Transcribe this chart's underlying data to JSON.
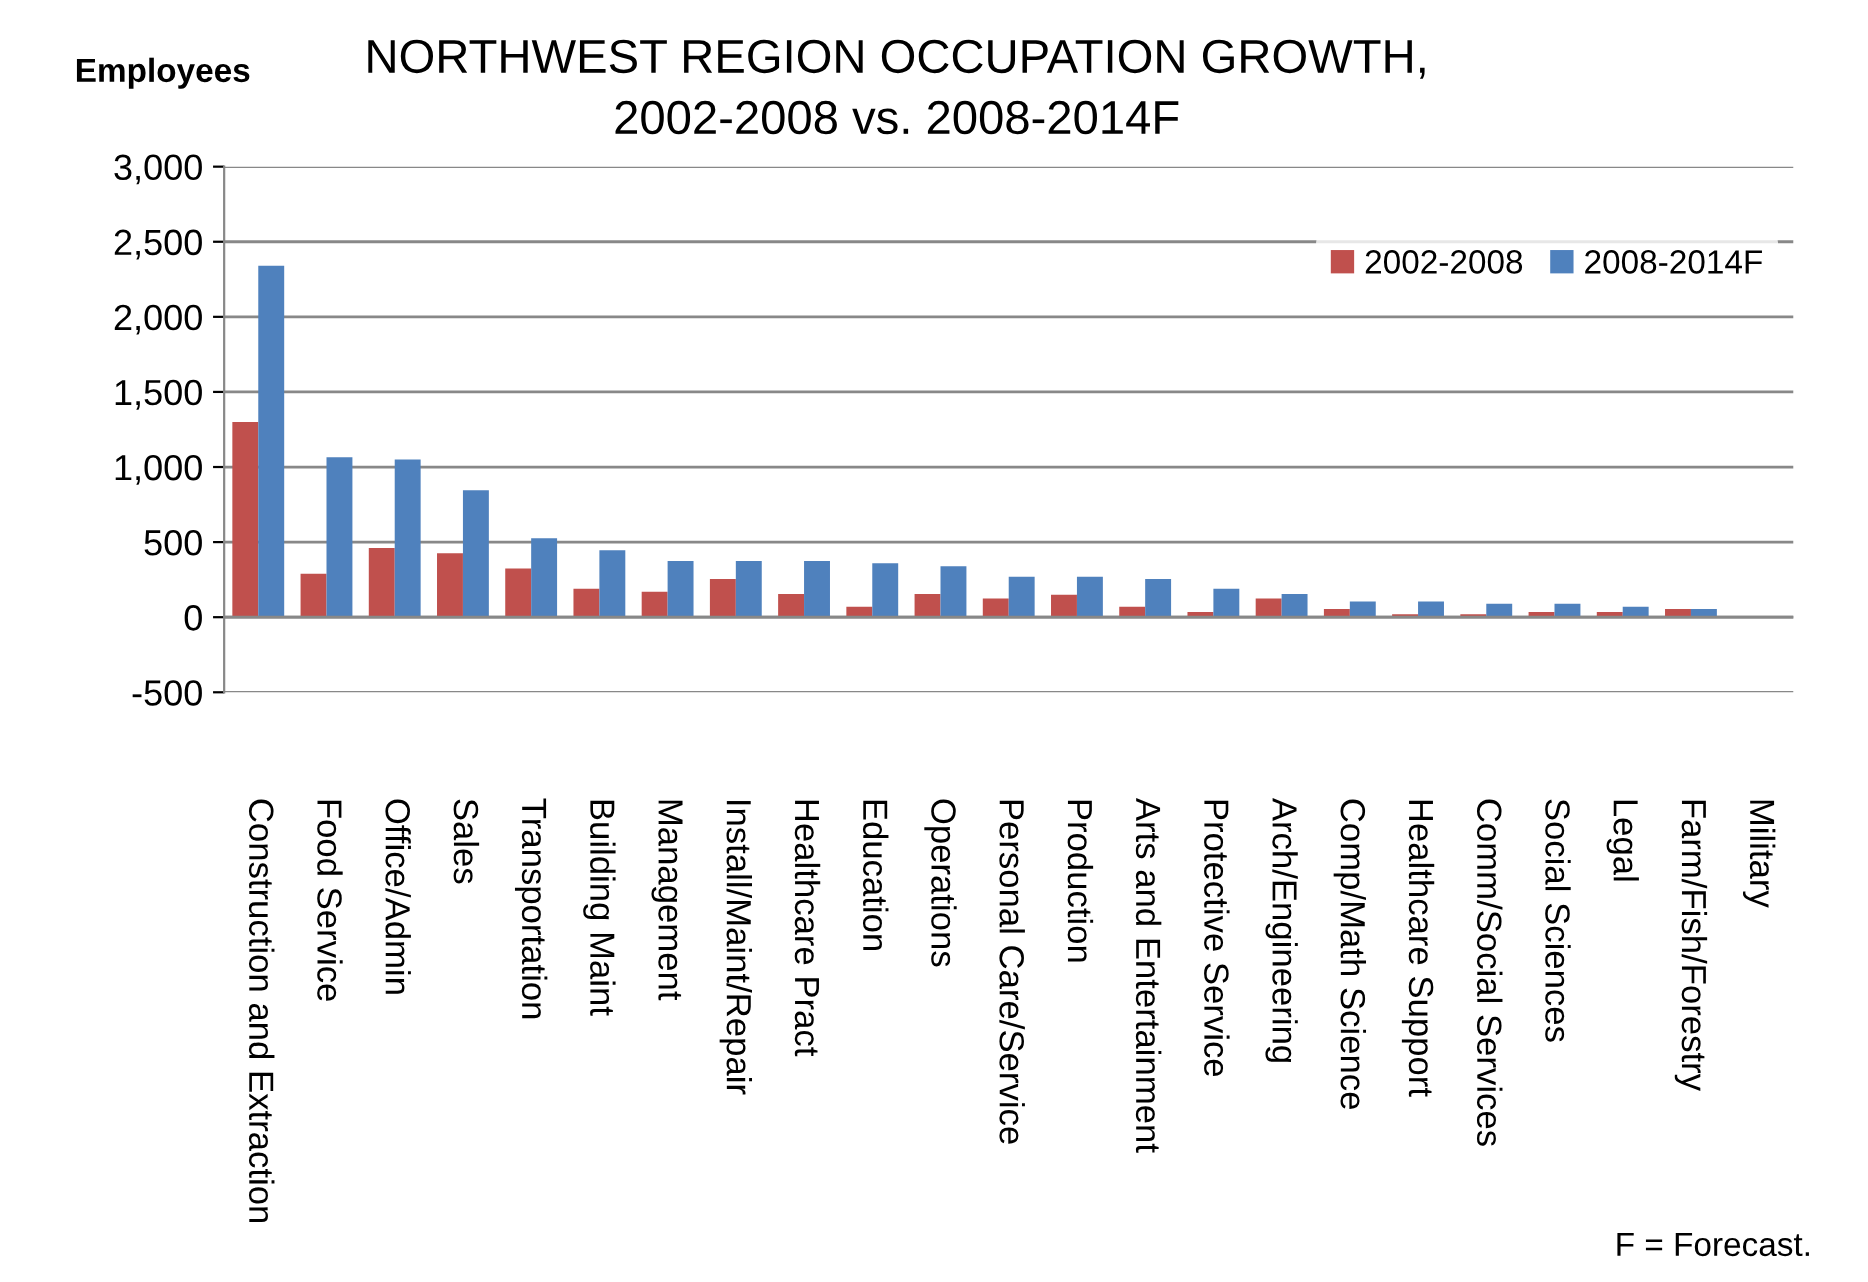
{
  "chart_data": {
    "type": "bar",
    "title": "NORTHWEST REGION OCCUPATION GROWTH,\n2002-2008 vs. 2008-2014F",
    "ylabel": "Employees",
    "categories": [
      "Construction and Extraction",
      "Food Service",
      "Office/Admin",
      "Sales",
      "Transportation",
      "Building Maint",
      "Management",
      "Install/Maint/Repair",
      "Healthcare Pract",
      "Education",
      "Operations",
      "Personal Care/Service",
      "Production",
      "Arts and Entertainment",
      "Protective Service",
      "Arch/Engineering",
      "Comp/Math Science",
      "Healthcare Support",
      "Comm/Social Services",
      "Social Sciences",
      "Legal",
      "Farm/Fish/Forestry",
      "Military"
    ],
    "series": [
      {
        "name": "2002-2008",
        "color": "#c0504d",
        "values": [
          1300,
          290,
          460,
          425,
          325,
          190,
          170,
          255,
          155,
          70,
          155,
          125,
          150,
          70,
          35,
          125,
          55,
          20,
          20,
          35,
          35,
          55,
          0
        ]
      },
      {
        "name": "2008-2014F",
        "color": "#4f81bd",
        "values": [
          2340,
          1065,
          1050,
          845,
          525,
          445,
          375,
          375,
          375,
          360,
          340,
          270,
          270,
          255,
          190,
          155,
          105,
          105,
          90,
          90,
          70,
          55,
          0
        ]
      }
    ],
    "ylim": [
      -500,
      3000
    ],
    "yticks": [
      {
        "value": -500,
        "label": "-500"
      },
      {
        "value": 0,
        "label": "0"
      },
      {
        "value": 500,
        "label": "500"
      },
      {
        "value": 1000,
        "label": "1,000"
      },
      {
        "value": 1500,
        "label": "1,500"
      },
      {
        "value": 2000,
        "label": "2,000"
      },
      {
        "value": 2500,
        "label": "2,500"
      },
      {
        "value": 3000,
        "label": "3,000"
      }
    ],
    "grid": "y",
    "legend": "top right",
    "annotations": [
      "F = Forecast."
    ]
  }
}
